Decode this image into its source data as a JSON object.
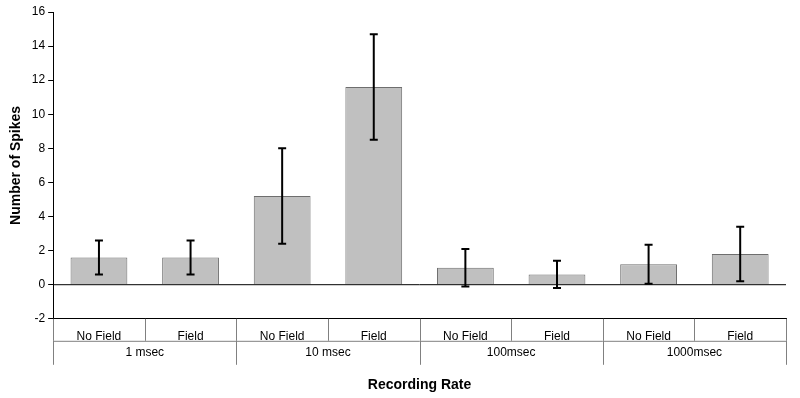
{
  "chart_data": {
    "type": "bar",
    "x_label": "Recording Rate",
    "y_label": "Number of Spikes",
    "groups": [
      {
        "label": "1 msec",
        "categories": [
          "No Field",
          "Field"
        ],
        "values": [
          1.6,
          1.6
        ],
        "errors": [
          1.0,
          1.0
        ]
      },
      {
        "label": "10 msec",
        "categories": [
          "No Field",
          "Field"
        ],
        "values": [
          5.2,
          11.6
        ],
        "errors": [
          2.8,
          3.1
        ]
      },
      {
        "label": "100msec",
        "categories": [
          "No Field",
          "Field"
        ],
        "values": [
          1.0,
          0.6
        ],
        "errors": [
          1.1,
          0.8
        ]
      },
      {
        "label": "1000msec",
        "categories": [
          "No Field",
          "Field"
        ],
        "values": [
          1.2,
          1.8
        ],
        "errors": [
          1.15,
          1.6
        ]
      }
    ],
    "color": "#c0c0c0",
    "ylim": [
      -2,
      16
    ],
    "yticks": [
      -2,
      0,
      2,
      4,
      6,
      8,
      10,
      12,
      14,
      16
    ],
    "grid": false
  }
}
